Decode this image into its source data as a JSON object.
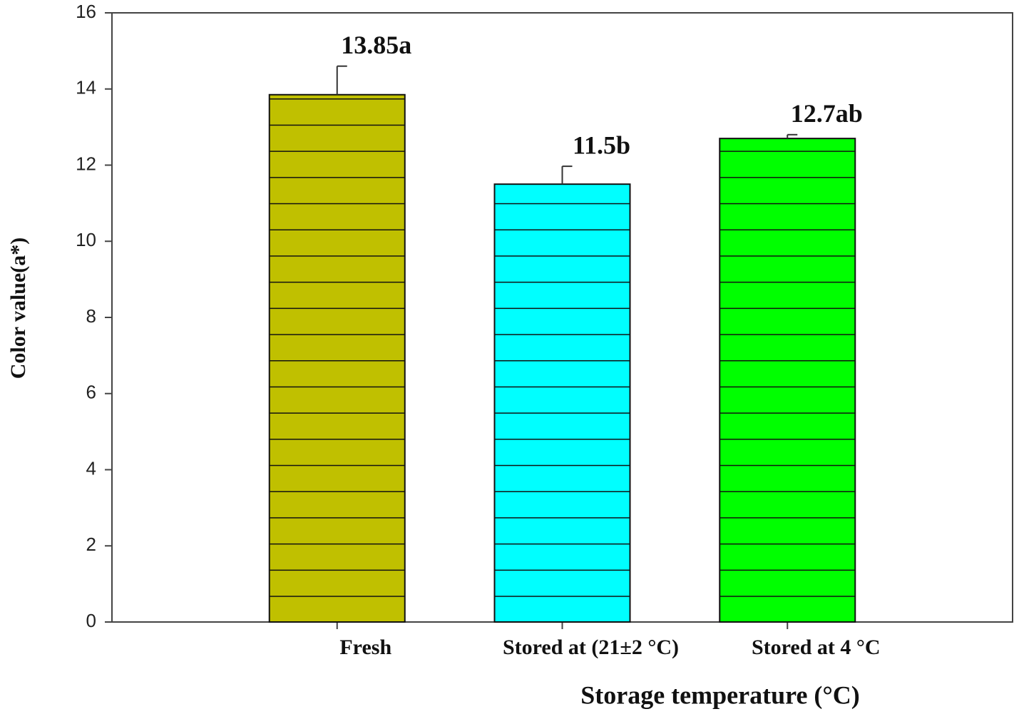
{
  "chart_data": {
    "type": "bar",
    "xlabel": "Storage temperature (°C)",
    "ylabel": "Color value(a*)",
    "categories": [
      "Fresh",
      "Stored at (21±2 °C)",
      "Stored at 4 °C"
    ],
    "values": [
      13.85,
      11.5,
      12.7
    ],
    "value_labels": [
      "13.85a",
      "11.5b",
      "12.7ab"
    ],
    "errors": [
      0.75,
      0.47,
      0.1
    ],
    "colors": [
      "#c0c000",
      "#00ffff",
      "#00ff00"
    ],
    "ylim": [
      0,
      16
    ],
    "yticks": [
      0,
      2,
      4,
      6,
      8,
      10,
      12,
      14,
      16
    ]
  }
}
